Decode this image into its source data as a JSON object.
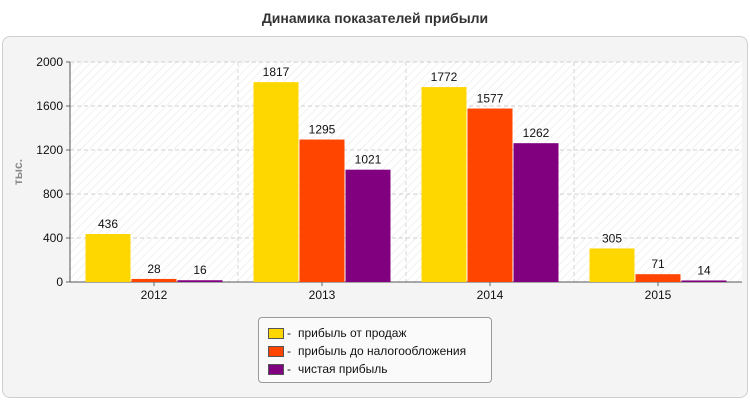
{
  "title": "Динамика показателей прибыли",
  "legend_dash": "-",
  "chart_data": {
    "type": "bar",
    "title": "Динамика показателей прибыли",
    "xlabel": "",
    "ylabel": "тыс.",
    "categories": [
      "2012",
      "2013",
      "2014",
      "2015"
    ],
    "series": [
      {
        "name": "прибыль от продаж",
        "values": [
          436,
          1817,
          1772,
          305
        ],
        "color": "#FFD700"
      },
      {
        "name": "прибыль до налогообложения",
        "values": [
          28,
          1295,
          1577,
          71
        ],
        "color": "#FF4500"
      },
      {
        "name": "чистая прибыль",
        "values": [
          16,
          1021,
          1262,
          14
        ],
        "color": "#800080"
      }
    ],
    "ylim": [
      0,
      2000
    ],
    "yticks": [
      0,
      400,
      800,
      1200,
      1600,
      2000
    ],
    "grid": true,
    "legend_position": "bottom"
  }
}
